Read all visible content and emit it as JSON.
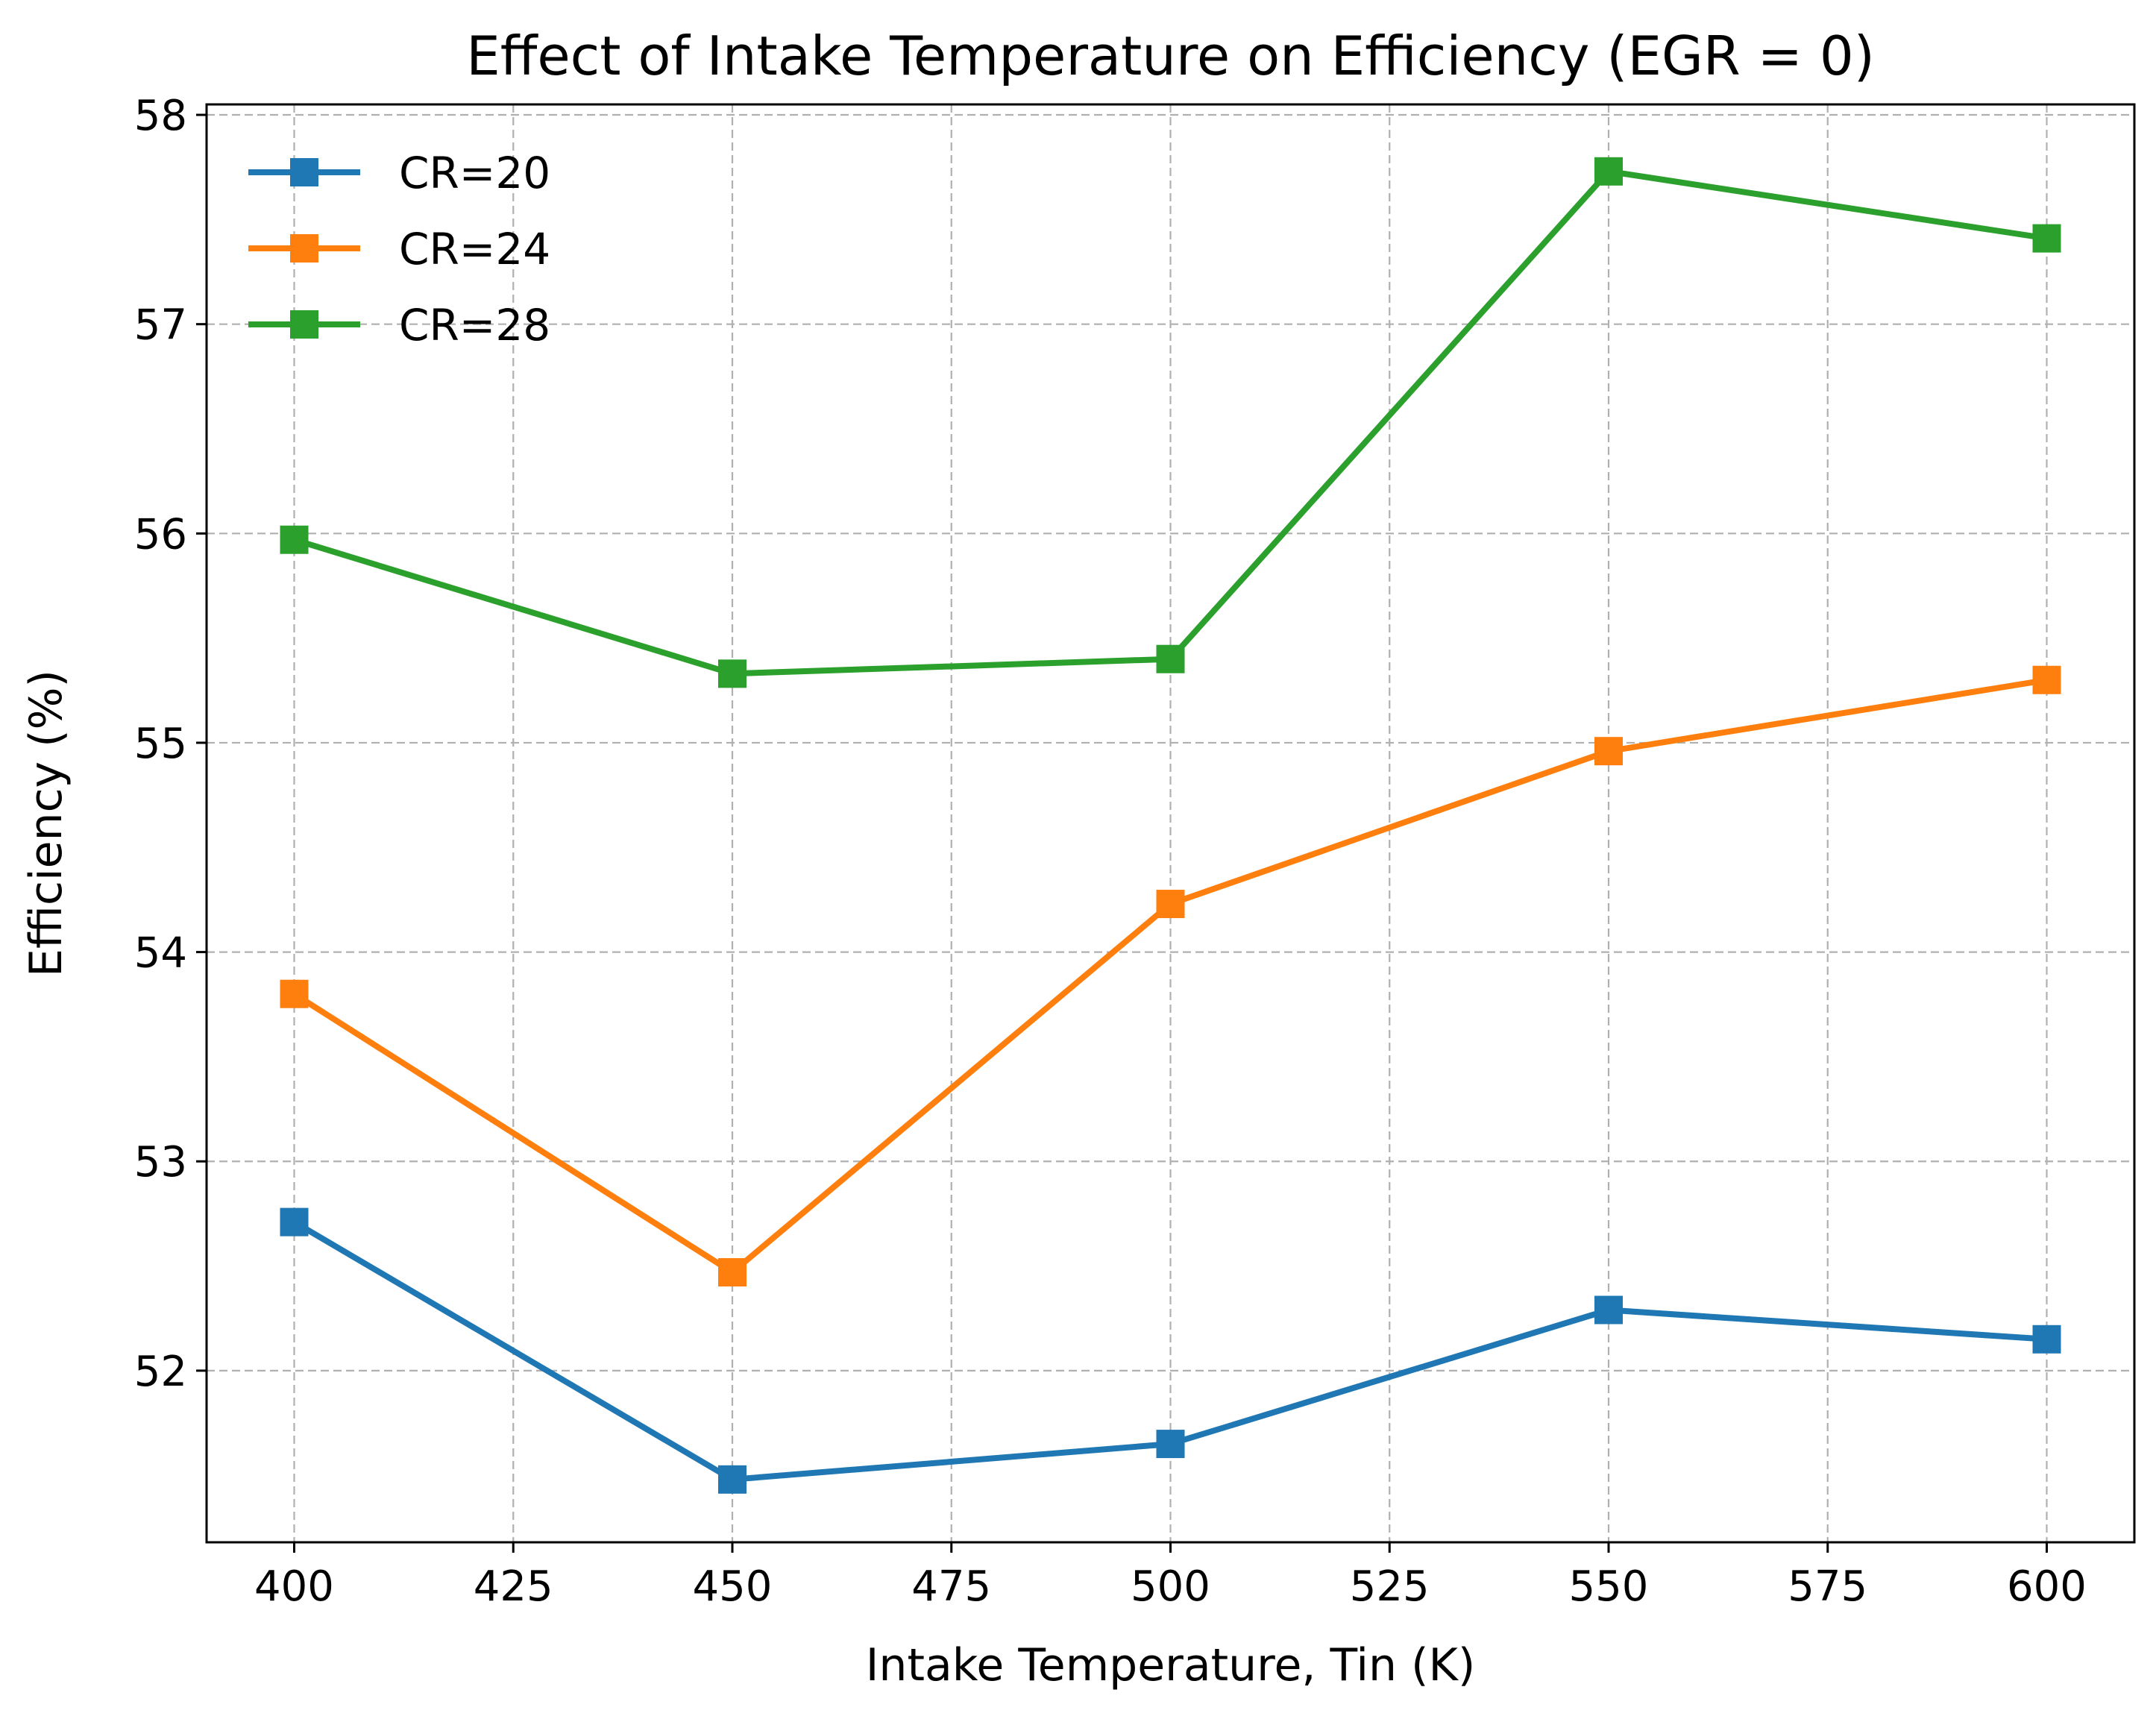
{
  "chart_data": {
    "type": "line",
    "title": "Effect of Intake Temperature on Efficiency (EGR = 0)",
    "xlabel": "Intake Temperature, Tin (K)",
    "ylabel": "Efficiency (%)",
    "x": [
      400,
      450,
      500,
      550,
      600
    ],
    "xticks": [
      400,
      425,
      450,
      475,
      500,
      525,
      550,
      575,
      600
    ],
    "yticks": [
      52,
      53,
      54,
      55,
      56,
      57,
      58
    ],
    "xlim": [
      390,
      610
    ],
    "ylim": [
      51.18,
      58.05
    ],
    "grid": true,
    "legend_position": "top-left",
    "marker": "square",
    "series": [
      {
        "name": "CR=20",
        "color": "#1f77b4",
        "values": [
          52.71,
          51.48,
          51.65,
          52.29,
          52.15
        ]
      },
      {
        "name": "CR=24",
        "color": "#ff7f0e",
        "values": [
          53.8,
          52.47,
          54.23,
          54.96,
          55.3
        ]
      },
      {
        "name": "CR=28",
        "color": "#2ca02c",
        "values": [
          55.97,
          55.33,
          55.4,
          57.73,
          57.41
        ]
      }
    ]
  }
}
